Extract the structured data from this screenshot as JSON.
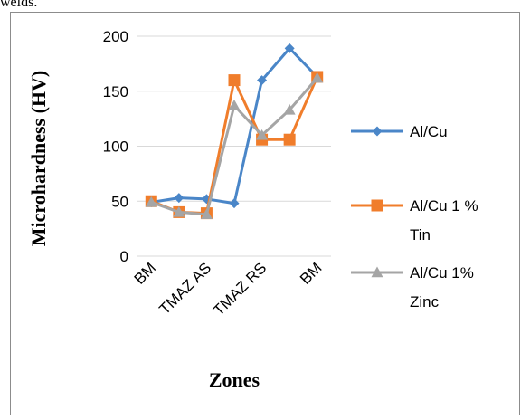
{
  "caption": "welds.",
  "chart_data": {
    "type": "line",
    "title": "",
    "xlabel": "Zones",
    "ylabel": "Microhardness (HV)",
    "ylim": [
      0,
      200
    ],
    "yticks": [
      "0",
      "50",
      "100",
      "150",
      "200"
    ],
    "xtick_labels": [
      "BM",
      "TMAZ AS",
      "TMAZ RS",
      "BM"
    ],
    "grid": "horizontal",
    "legend_position": "right",
    "series": [
      {
        "name": "Al/Cu",
        "color": "#4a86c8",
        "marker": "diamond",
        "values": [
          49,
          53,
          52,
          48,
          160,
          189,
          163
        ]
      },
      {
        "name": "Al/Cu 1 %\nTin",
        "color": "#f07d2b",
        "marker": "square",
        "values": [
          50,
          40,
          39,
          160,
          106,
          106,
          163
        ]
      },
      {
        "name": "Al/Cu 1%\nZinc",
        "color": "#a5a5a5",
        "marker": "triangle",
        "values": [
          49,
          40,
          38,
          137,
          110,
          133,
          162
        ]
      }
    ]
  }
}
